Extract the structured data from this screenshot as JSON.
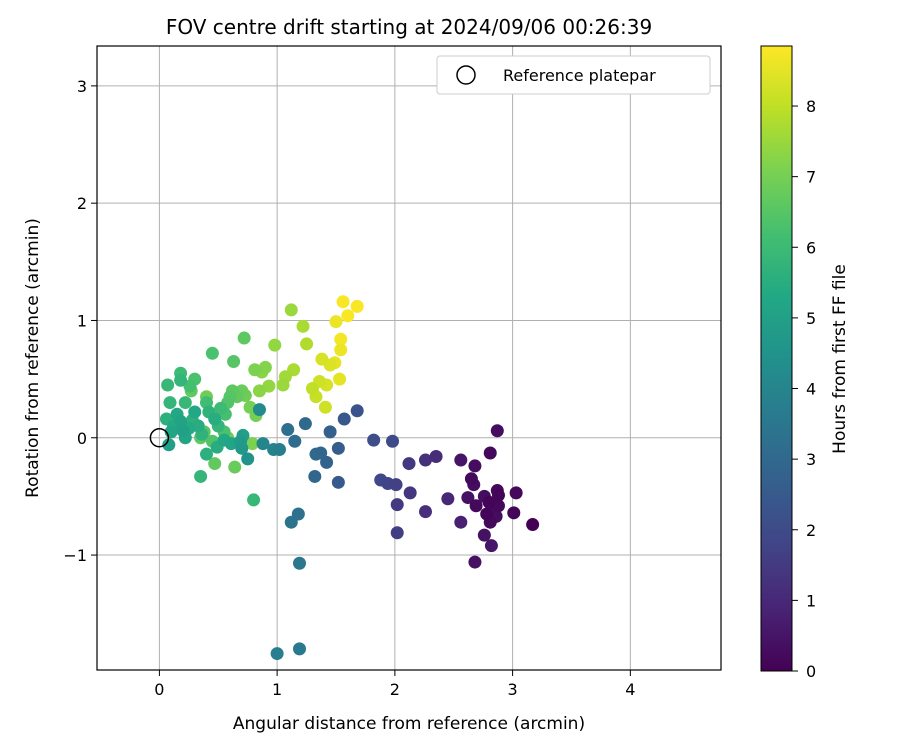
{
  "chart_data": {
    "type": "scatter",
    "title": "FOV centre drift starting at 2024/09/06 00:26:39",
    "xlabel": "Angular distance from reference (arcmin)",
    "ylabel": "Rotation from reference (arcmin)",
    "xlim": [
      -0.53,
      4.77
    ],
    "ylim": [
      -1.98,
      3.34
    ],
    "xticks": [
      0,
      1,
      2,
      3,
      4
    ],
    "xtick_labels": [
      "0",
      "1",
      "2",
      "3",
      "4"
    ],
    "yticks": [
      -1,
      0,
      1,
      2,
      3
    ],
    "ytick_labels": [
      "−1",
      "0",
      "1",
      "2",
      "3"
    ],
    "grid": true,
    "legend": {
      "position": "top-right",
      "entries": [
        "Reference platepar"
      ]
    },
    "reference_point": {
      "x": 0,
      "y": 0,
      "label": "Reference platepar"
    },
    "colorbar": {
      "label": "Hours from first FF file",
      "min": 0,
      "max": 8.85,
      "ticks": [
        0,
        1,
        2,
        3,
        4,
        5,
        6,
        7,
        8
      ],
      "colormap": "viridis"
    },
    "points": [
      {
        "x": 2.87,
        "y": 0.06,
        "h": 0.3
      },
      {
        "x": 2.81,
        "y": -0.13,
        "h": 0.2
      },
      {
        "x": 2.68,
        "y": -0.24,
        "h": 0.3
      },
      {
        "x": 2.56,
        "y": -0.19,
        "h": 0.5
      },
      {
        "x": 2.65,
        "y": -0.35,
        "h": 0.2
      },
      {
        "x": 2.67,
        "y": -0.4,
        "h": 0.3
      },
      {
        "x": 2.62,
        "y": -0.51,
        "h": 0.4
      },
      {
        "x": 2.69,
        "y": -0.58,
        "h": 0.2
      },
      {
        "x": 2.76,
        "y": -0.5,
        "h": 0.3
      },
      {
        "x": 2.8,
        "y": -0.55,
        "h": 0.1
      },
      {
        "x": 2.87,
        "y": -0.45,
        "h": 0.2
      },
      {
        "x": 2.88,
        "y": -0.49,
        "h": 0.1
      },
      {
        "x": 2.88,
        "y": -0.58,
        "h": 0.2
      },
      {
        "x": 2.84,
        "y": -0.62,
        "h": 0.3
      },
      {
        "x": 2.78,
        "y": -0.65,
        "h": 0.1
      },
      {
        "x": 2.81,
        "y": -0.72,
        "h": 0.2
      },
      {
        "x": 2.86,
        "y": -0.67,
        "h": 0.3
      },
      {
        "x": 3.01,
        "y": -0.64,
        "h": 0.1
      },
      {
        "x": 3.03,
        "y": -0.47,
        "h": 0.2
      },
      {
        "x": 3.17,
        "y": -0.74,
        "h": 0.0
      },
      {
        "x": 2.76,
        "y": -0.83,
        "h": 0.4
      },
      {
        "x": 2.82,
        "y": -0.92,
        "h": 0.5
      },
      {
        "x": 2.68,
        "y": -1.06,
        "h": 0.4
      },
      {
        "x": 2.56,
        "y": -0.72,
        "h": 0.8
      },
      {
        "x": 2.45,
        "y": -0.52,
        "h": 1.0
      },
      {
        "x": 2.35,
        "y": -0.16,
        "h": 1.1
      },
      {
        "x": 2.26,
        "y": -0.19,
        "h": 1.2
      },
      {
        "x": 2.12,
        "y": -0.22,
        "h": 1.4
      },
      {
        "x": 2.13,
        "y": -0.47,
        "h": 1.4
      },
      {
        "x": 2.26,
        "y": -0.63,
        "h": 1.2
      },
      {
        "x": 2.02,
        "y": -0.57,
        "h": 1.5
      },
      {
        "x": 2.02,
        "y": -0.81,
        "h": 1.6
      },
      {
        "x": 2.01,
        "y": -0.4,
        "h": 1.7
      },
      {
        "x": 1.94,
        "y": -0.39,
        "h": 1.8
      },
      {
        "x": 1.88,
        "y": -0.36,
        "h": 1.9
      },
      {
        "x": 1.98,
        "y": -0.03,
        "h": 2.0
      },
      {
        "x": 1.82,
        "y": -0.02,
        "h": 2.1
      },
      {
        "x": 1.68,
        "y": 0.23,
        "h": 2.3
      },
      {
        "x": 1.57,
        "y": 0.16,
        "h": 2.4
      },
      {
        "x": 1.52,
        "y": -0.38,
        "h": 2.5
      },
      {
        "x": 1.52,
        "y": -0.09,
        "h": 2.6
      },
      {
        "x": 1.45,
        "y": 0.05,
        "h": 2.7
      },
      {
        "x": 1.42,
        "y": -0.21,
        "h": 2.8
      },
      {
        "x": 1.37,
        "y": -0.13,
        "h": 2.9
      },
      {
        "x": 1.33,
        "y": -0.14,
        "h": 3.0
      },
      {
        "x": 1.32,
        "y": -0.33,
        "h": 2.9
      },
      {
        "x": 1.24,
        "y": 0.12,
        "h": 3.0
      },
      {
        "x": 1.15,
        "y": -0.03,
        "h": 3.1
      },
      {
        "x": 1.09,
        "y": 0.07,
        "h": 3.2
      },
      {
        "x": 1.18,
        "y": -0.65,
        "h": 3.3
      },
      {
        "x": 1.12,
        "y": -0.72,
        "h": 3.4
      },
      {
        "x": 1.19,
        "y": -1.07,
        "h": 3.5
      },
      {
        "x": 1.19,
        "y": -1.8,
        "h": 3.6
      },
      {
        "x": 1.0,
        "y": -1.84,
        "h": 3.7
      },
      {
        "x": 1.02,
        "y": -0.1,
        "h": 3.8
      },
      {
        "x": 0.97,
        "y": -0.1,
        "h": 3.9
      },
      {
        "x": 0.88,
        "y": -0.05,
        "h": 4.0
      },
      {
        "x": 0.85,
        "y": 0.24,
        "h": 4.2
      },
      {
        "x": 0.75,
        "y": -0.18,
        "h": 4.5
      },
      {
        "x": 0.7,
        "y": -0.09,
        "h": 4.7
      },
      {
        "x": 0.69,
        "y": -0.03,
        "h": 4.8
      },
      {
        "x": 0.71,
        "y": 0.02,
        "h": 5.0
      },
      {
        "x": 0.61,
        "y": -0.05,
        "h": 5.2
      },
      {
        "x": 0.55,
        "y": -0.02,
        "h": 5.3
      },
      {
        "x": 0.49,
        "y": -0.08,
        "h": 5.5
      },
      {
        "x": 0.4,
        "y": -0.14,
        "h": 5.6
      },
      {
        "x": 0.35,
        "y": -0.33,
        "h": 5.8
      },
      {
        "x": 0.8,
        "y": -0.53,
        "h": 5.9
      },
      {
        "x": 0.08,
        "y": -0.06,
        "h": 5.0
      },
      {
        "x": 0.1,
        "y": 0.05,
        "h": 5.2
      },
      {
        "x": 0.12,
        "y": 0.1,
        "h": 5.4
      },
      {
        "x": 0.15,
        "y": 0.2,
        "h": 5.3
      },
      {
        "x": 0.18,
        "y": 0.14,
        "h": 5.1
      },
      {
        "x": 0.2,
        "y": 0.06,
        "h": 5.0
      },
      {
        "x": 0.22,
        "y": 0.0,
        "h": 5.2
      },
      {
        "x": 0.25,
        "y": 0.08,
        "h": 5.4
      },
      {
        "x": 0.28,
        "y": 0.15,
        "h": 5.6
      },
      {
        "x": 0.3,
        "y": 0.22,
        "h": 5.3
      },
      {
        "x": 0.33,
        "y": 0.1,
        "h": 5.5
      },
      {
        "x": 0.36,
        "y": 0.03,
        "h": 5.7
      },
      {
        "x": 0.06,
        "y": 0.16,
        "h": 5.6
      },
      {
        "x": 0.09,
        "y": 0.3,
        "h": 5.8
      },
      {
        "x": 0.07,
        "y": 0.45,
        "h": 5.9
      },
      {
        "x": 0.18,
        "y": 0.55,
        "h": 6.0
      },
      {
        "x": 0.18,
        "y": 0.49,
        "h": 5.8
      },
      {
        "x": 0.26,
        "y": 0.44,
        "h": 6.2
      },
      {
        "x": 0.3,
        "y": 0.5,
        "h": 6.3
      },
      {
        "x": 0.22,
        "y": 0.3,
        "h": 5.9
      },
      {
        "x": 0.4,
        "y": 0.3,
        "h": 6.1
      },
      {
        "x": 0.42,
        "y": 0.22,
        "h": 5.7
      },
      {
        "x": 0.47,
        "y": 0.16,
        "h": 5.5
      },
      {
        "x": 0.5,
        "y": 0.1,
        "h": 5.8
      },
      {
        "x": 0.52,
        "y": 0.25,
        "h": 6.0
      },
      {
        "x": 0.56,
        "y": 0.2,
        "h": 6.2
      },
      {
        "x": 0.58,
        "y": 0.3,
        "h": 6.4
      },
      {
        "x": 0.6,
        "y": 0.35,
        "h": 6.5
      },
      {
        "x": 0.62,
        "y": 0.4,
        "h": 6.6
      },
      {
        "x": 0.55,
        "y": 0.05,
        "h": 6.3
      },
      {
        "x": 0.45,
        "y": -0.03,
        "h": 6.4
      },
      {
        "x": 0.38,
        "y": 0.05,
        "h": 6.5
      },
      {
        "x": 0.35,
        "y": 0.0,
        "h": 6.6
      },
      {
        "x": 0.47,
        "y": -0.22,
        "h": 6.7
      },
      {
        "x": 0.64,
        "y": -0.25,
        "h": 6.8
      },
      {
        "x": 0.58,
        "y": 0.0,
        "h": 6.9
      },
      {
        "x": 0.66,
        "y": 0.35,
        "h": 6.7
      },
      {
        "x": 0.7,
        "y": 0.4,
        "h": 6.8
      },
      {
        "x": 0.73,
        "y": 0.36,
        "h": 6.9
      },
      {
        "x": 0.77,
        "y": 0.26,
        "h": 7.0
      },
      {
        "x": 0.79,
        "y": -0.05,
        "h": 7.1
      },
      {
        "x": 0.82,
        "y": 0.19,
        "h": 7.0
      },
      {
        "x": 0.45,
        "y": 0.72,
        "h": 6.3
      },
      {
        "x": 0.63,
        "y": 0.65,
        "h": 6.5
      },
      {
        "x": 0.72,
        "y": 0.85,
        "h": 6.6
      },
      {
        "x": 0.4,
        "y": 0.35,
        "h": 6.9
      },
      {
        "x": 0.27,
        "y": 0.4,
        "h": 6.7
      },
      {
        "x": 0.81,
        "y": 0.58,
        "h": 7.1
      },
      {
        "x": 0.87,
        "y": 0.56,
        "h": 7.3
      },
      {
        "x": 0.9,
        "y": 0.6,
        "h": 7.2
      },
      {
        "x": 0.85,
        "y": 0.4,
        "h": 7.3
      },
      {
        "x": 0.93,
        "y": 0.44,
        "h": 7.4
      },
      {
        "x": 0.98,
        "y": 0.79,
        "h": 7.4
      },
      {
        "x": 1.05,
        "y": 0.45,
        "h": 7.5
      },
      {
        "x": 1.07,
        "y": 0.52,
        "h": 7.6
      },
      {
        "x": 1.12,
        "y": 1.09,
        "h": 7.5
      },
      {
        "x": 1.14,
        "y": 0.58,
        "h": 7.7
      },
      {
        "x": 1.22,
        "y": 0.95,
        "h": 7.7
      },
      {
        "x": 1.25,
        "y": 0.8,
        "h": 7.8
      },
      {
        "x": 1.3,
        "y": 0.42,
        "h": 8.0
      },
      {
        "x": 1.33,
        "y": 0.35,
        "h": 8.1
      },
      {
        "x": 1.36,
        "y": 0.48,
        "h": 8.2
      },
      {
        "x": 1.38,
        "y": 0.67,
        "h": 8.3
      },
      {
        "x": 1.41,
        "y": 0.26,
        "h": 8.2
      },
      {
        "x": 1.42,
        "y": 0.45,
        "h": 8.3
      },
      {
        "x": 1.45,
        "y": 0.62,
        "h": 8.4
      },
      {
        "x": 1.49,
        "y": 0.64,
        "h": 8.5
      },
      {
        "x": 1.5,
        "y": 0.99,
        "h": 8.6
      },
      {
        "x": 1.53,
        "y": 0.5,
        "h": 8.5
      },
      {
        "x": 1.54,
        "y": 0.75,
        "h": 8.6
      },
      {
        "x": 1.54,
        "y": 0.84,
        "h": 8.7
      },
      {
        "x": 1.56,
        "y": 1.16,
        "h": 8.8
      },
      {
        "x": 1.6,
        "y": 1.04,
        "h": 8.8
      },
      {
        "x": 1.68,
        "y": 1.12,
        "h": 8.8
      }
    ]
  }
}
